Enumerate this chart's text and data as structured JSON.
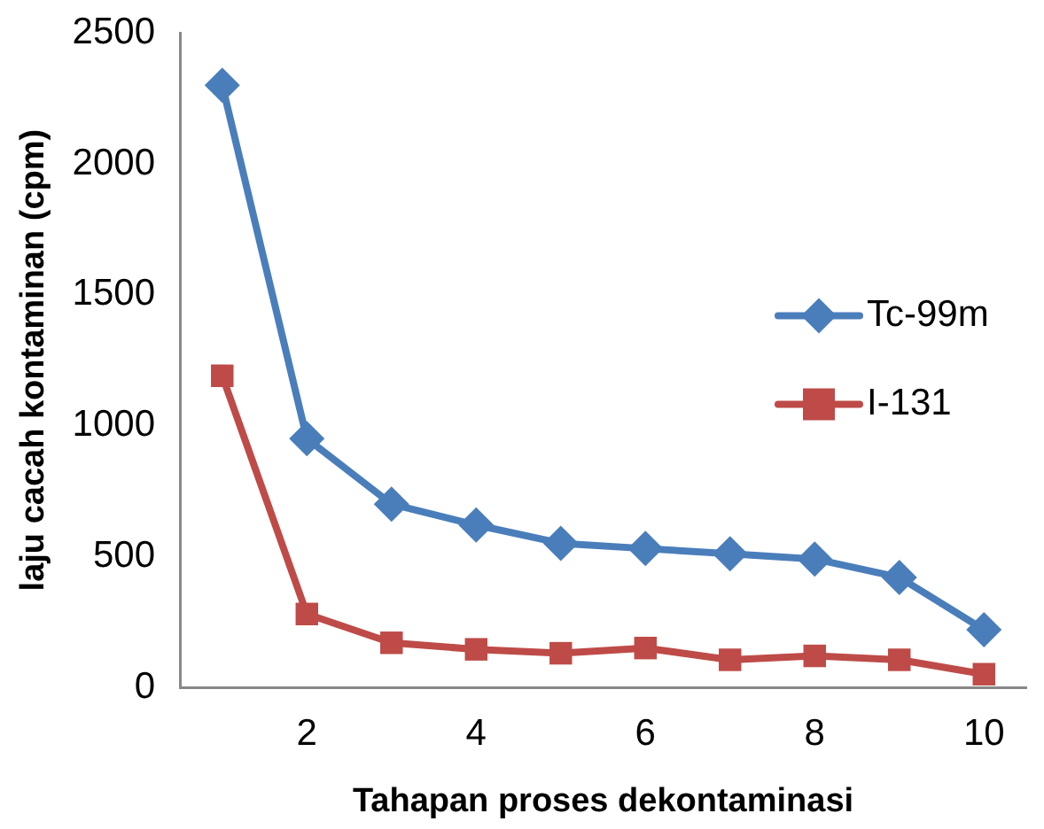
{
  "chart_data": {
    "type": "line",
    "xlabel": "Tahapan proses dekontaminasi",
    "ylabel": "laju cacah kontaminan (cpm)",
    "categories": [
      null,
      "2",
      null,
      "4",
      null,
      "6",
      null,
      "8",
      null,
      "10"
    ],
    "series": [
      {
        "name": "Tc-99m",
        "color": "#4a7ebb",
        "marker": "diamond",
        "values": [
          2300,
          950,
          700,
          620,
          550,
          530,
          510,
          490,
          420,
          220
        ]
      },
      {
        "name": "I-131",
        "color": "#be4b48",
        "marker": "square",
        "values": [
          1190,
          280,
          170,
          145,
          130,
          150,
          105,
          120,
          105,
          50
        ]
      }
    ],
    "ylim": [
      0,
      2500
    ],
    "yticks": [
      0,
      500,
      1000,
      1500,
      2000,
      2500
    ],
    "grid": false,
    "legend": "right",
    "line_style": "solid"
  }
}
